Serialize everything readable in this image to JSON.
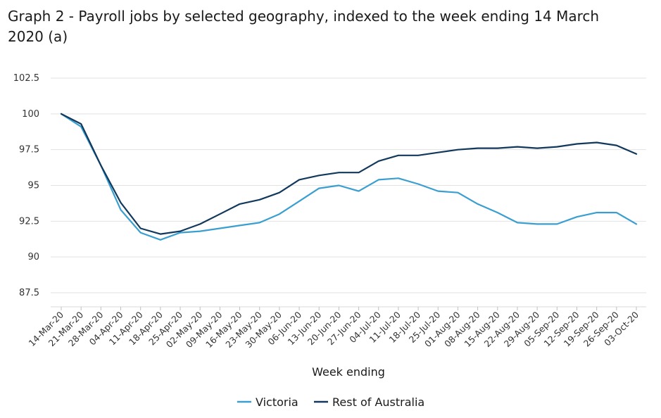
{
  "chart_data": {
    "type": "line",
    "title": "Graph 2 - Payroll jobs by selected geography, indexed to the week ending 14 March 2020 (a)",
    "xlabel": "Week ending",
    "ylabel": "",
    "ylim": [
      87.5,
      102.5
    ],
    "yticks": [
      "87.5",
      "90",
      "92.5",
      "95",
      "97.5",
      "100",
      "102.5"
    ],
    "categories": [
      "14-Mar-20",
      "21-Mar-20",
      "28-Mar-20",
      "04-Apr-20",
      "11-Apr-20",
      "18-Apr-20",
      "25-Apr-20",
      "02-May-20",
      "09-May-20",
      "16-May-20",
      "23-May-20",
      "30-May-20",
      "06-Jun-20",
      "13-Jun-20",
      "20-Jun-20",
      "27-Jun-20",
      "04-Jul-20",
      "11-Jul-20",
      "18-Jul-20",
      "25-Jul-20",
      "01-Aug-20",
      "08-Aug-20",
      "15-Aug-20",
      "22-Aug-20",
      "29-Aug-20",
      "05-Sep-20",
      "12-Sep-20",
      "19-Sep-20",
      "26-Sep-20",
      "03-Oct-20"
    ],
    "grid": true,
    "legend_position": "bottom",
    "series": [
      {
        "name": "Victoria",
        "color": "#3a9fd0",
        "values": [
          100.0,
          99.1,
          96.4,
          93.3,
          91.7,
          91.2,
          91.7,
          91.8,
          92.0,
          92.2,
          92.4,
          93.0,
          93.9,
          94.8,
          95.0,
          94.6,
          95.4,
          95.5,
          95.1,
          94.6,
          94.5,
          93.7,
          93.1,
          92.4,
          92.3,
          92.3,
          92.8,
          93.1,
          93.1,
          92.3
        ]
      },
      {
        "name": "Rest of Australia",
        "color": "#12395c",
        "values": [
          100.0,
          99.3,
          96.4,
          93.8,
          92.0,
          91.6,
          91.8,
          92.3,
          93.0,
          93.7,
          94.0,
          94.5,
          95.4,
          95.7,
          95.9,
          95.9,
          96.7,
          97.1,
          97.1,
          97.3,
          97.5,
          97.6,
          97.6,
          97.7,
          97.6,
          97.7,
          97.9,
          98.0,
          97.8,
          97.2
        ]
      }
    ]
  }
}
